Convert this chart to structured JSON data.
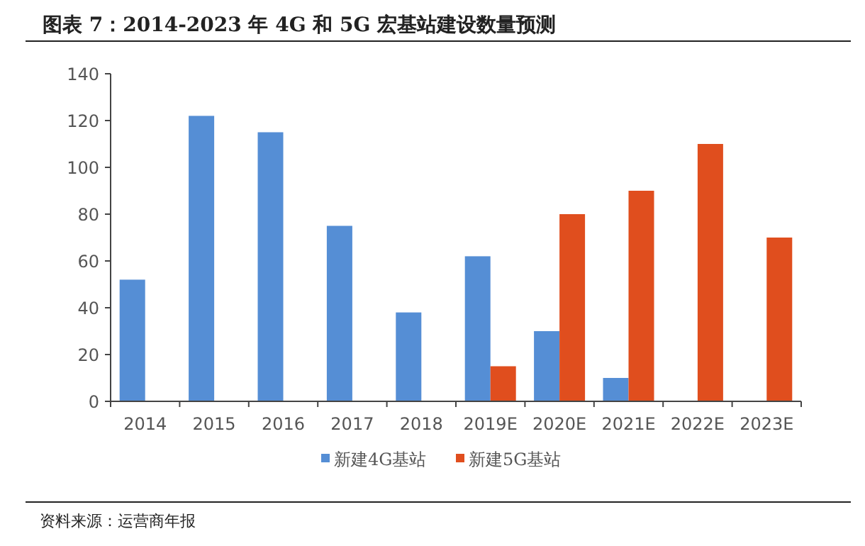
{
  "chart_data": {
    "type": "bar",
    "title": "图表 7：2014-2023 年 4G 和 5G 宏基站建设数量预测",
    "categories": [
      "2014",
      "2015",
      "2016",
      "2017",
      "2018",
      "2019E",
      "2020E",
      "2021E",
      "2022E",
      "2023E"
    ],
    "series": [
      {
        "name": "新建4G基站",
        "color": "#558ed5",
        "values": [
          52,
          122,
          115,
          75,
          38,
          62,
          30,
          10,
          null,
          null
        ]
      },
      {
        "name": "新建5G基站",
        "color": "#e04e1e",
        "values": [
          null,
          null,
          null,
          null,
          null,
          15,
          80,
          90,
          110,
          70
        ]
      }
    ],
    "ylim": [
      0,
      140
    ],
    "yticks": [
      0,
      20,
      40,
      60,
      80,
      100,
      120,
      140
    ],
    "grid": false,
    "legend": "bottom",
    "annotations": [
      "资料来源：运营商年报"
    ]
  }
}
